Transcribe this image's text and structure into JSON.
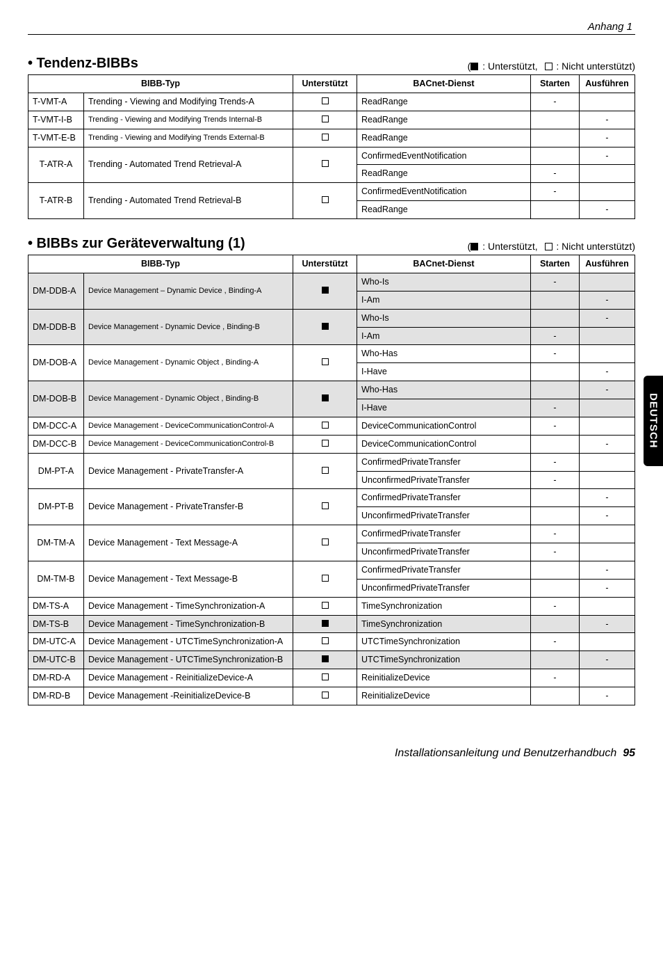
{
  "header": {
    "sectionLabel": "Anhang 1"
  },
  "legend": {
    "supported": "Unterstützt",
    "notSupported": "Nicht unterstützt"
  },
  "sections": {
    "tendenz": {
      "title": "• Tendenz-BIBBs",
      "columns": {
        "bibbType": "BIBB-Typ",
        "supported": "Unterstützt",
        "service": "BACnet-Dienst",
        "start": "Starten",
        "exec": "Ausführen"
      }
    },
    "geraete": {
      "title": "• BIBBs zur Geräteverwaltung (1)",
      "columns": {
        "bibbType": "BIBB-Typ",
        "supported": "Unterstützt",
        "service": "BACnet-Dienst",
        "start": "Starten",
        "exec": "Ausführen"
      }
    }
  },
  "t1": {
    "r0": {
      "code": "T-VMT-A",
      "name": "Trending - Viewing and Modifying Trends-A",
      "sup": "empty",
      "svc": "ReadRange",
      "start": "-",
      "exec": ""
    },
    "r1": {
      "code": "T-VMT-I-B",
      "name": "Trending - Viewing and Modifying Trends Internal-B",
      "sup": "empty",
      "svc": "ReadRange",
      "start": "",
      "exec": "-"
    },
    "r2": {
      "code": "T-VMT-E-B",
      "name": "Trending - Viewing and Modifying Trends External-B",
      "sup": "empty",
      "svc": "ReadRange",
      "start": "",
      "exec": "-"
    },
    "r3": {
      "code": "T-ATR-A",
      "name": "Trending - Automated Trend Retrieval-A",
      "sup": "empty",
      "svc": "ConfirmedEventNotification",
      "start": "",
      "exec": "-"
    },
    "r4": {
      "svc": "ReadRange",
      "start": "-",
      "exec": ""
    },
    "r5": {
      "code": "T-ATR-B",
      "name": "Trending - Automated Trend Retrieval-B",
      "sup": "empty",
      "svc": "ConfirmedEventNotification",
      "start": "-",
      "exec": ""
    },
    "r6": {
      "svc": "ReadRange",
      "start": "",
      "exec": "-"
    }
  },
  "t2": {
    "r0": {
      "code": "DM-DDB-A",
      "name": "Device Management – Dynamic Device , Binding-A",
      "sup": "filled",
      "svc": "Who-Is",
      "start": "-",
      "exec": "",
      "shaded": true
    },
    "r1": {
      "svc": "I-Am",
      "start": "",
      "exec": "-",
      "shaded": true
    },
    "r2": {
      "code": "DM-DDB-B",
      "name": "Device Management - Dynamic Device , Binding-B",
      "sup": "filled",
      "svc": "Who-Is",
      "start": "",
      "exec": "-",
      "shaded": true
    },
    "r3": {
      "svc": "I-Am",
      "start": "-",
      "exec": "",
      "shaded": true
    },
    "r4": {
      "code": "DM-DOB-A",
      "name": "Device Management - Dynamic Object , Binding-A",
      "sup": "empty",
      "svc": "Who-Has",
      "start": "-",
      "exec": ""
    },
    "r5": {
      "svc": "I-Have",
      "start": "",
      "exec": "-"
    },
    "r6": {
      "code": "DM-DOB-B",
      "name": "Device Management - Dynamic Object , Binding-B",
      "sup": "filled",
      "svc": "Who-Has",
      "start": "",
      "exec": "-",
      "shaded": true
    },
    "r7": {
      "svc": "I-Have",
      "start": "-",
      "exec": "",
      "shaded": true
    },
    "r8": {
      "code": "DM-DCC-A",
      "name": "Device Management - DeviceCommunicationControl-A",
      "sup": "empty",
      "svc": "DeviceCommunicationControl",
      "start": "-",
      "exec": ""
    },
    "r9": {
      "code": "DM-DCC-B",
      "name": "Device Management - DeviceCommunicationControl-B",
      "sup": "empty",
      "svc": "DeviceCommunicationControl",
      "start": "",
      "exec": "-"
    },
    "r10": {
      "code": "DM-PT-A",
      "name": "Device Management - PrivateTransfer-A",
      "sup": "empty",
      "svc": "ConfirmedPrivateTransfer",
      "start": "-",
      "exec": ""
    },
    "r11": {
      "svc": "UnconfirmedPrivateTransfer",
      "start": "-",
      "exec": ""
    },
    "r12": {
      "code": "DM-PT-B",
      "name": "Device Management - PrivateTransfer-B",
      "sup": "empty",
      "svc": "ConfirmedPrivateTransfer",
      "start": "",
      "exec": "-"
    },
    "r13": {
      "svc": "UnconfirmedPrivateTransfer",
      "start": "",
      "exec": "-"
    },
    "r14": {
      "code": "DM-TM-A",
      "name": "Device Management - Text Message-A",
      "sup": "empty",
      "svc": "ConfirmedPrivateTransfer",
      "start": "-",
      "exec": ""
    },
    "r15": {
      "svc": "UnconfirmedPrivateTransfer",
      "start": "-",
      "exec": ""
    },
    "r16": {
      "code": "DM-TM-B",
      "name": "Device Management - Text Message-B",
      "sup": "empty",
      "svc": "ConfirmedPrivateTransfer",
      "start": "",
      "exec": "-"
    },
    "r17": {
      "svc": "UnconfirmedPrivateTransfer",
      "start": "",
      "exec": "-"
    },
    "r18": {
      "code": "DM-TS-A",
      "name": "Device Management - TimeSynchronization-A",
      "sup": "empty",
      "svc": "TimeSynchronization",
      "start": "-",
      "exec": ""
    },
    "r19": {
      "code": "DM-TS-B",
      "name": "Device Management - TimeSynchronization-B",
      "sup": "filled",
      "svc": "TimeSynchronization",
      "start": "",
      "exec": "-",
      "shaded": true
    },
    "r20": {
      "code": "DM-UTC-A",
      "name": "Device Management - UTCTimeSynchronization-A",
      "sup": "empty",
      "svc": "UTCTimeSynchronization",
      "start": "-",
      "exec": ""
    },
    "r21": {
      "code": "DM-UTC-B",
      "name": "Device Management - UTCTimeSynchronization-B",
      "sup": "filled",
      "svc": "UTCTimeSynchronization",
      "start": "",
      "exec": "-",
      "shaded": true
    },
    "r22": {
      "code": "DM-RD-A",
      "name": "Device Management - ReinitializeDevice-A",
      "sup": "empty",
      "svc": "ReinitializeDevice",
      "start": "-",
      "exec": ""
    },
    "r23": {
      "code": "DM-RD-B",
      "name": "Device Management -ReinitializeDevice-B",
      "sup": "empty",
      "svc": "ReinitializeDevice",
      "start": "",
      "exec": "-"
    }
  },
  "sideTab": "DEUTSCH",
  "footer": {
    "text": "Installationsanleitung und Benutzerhandbuch",
    "page": "95"
  }
}
